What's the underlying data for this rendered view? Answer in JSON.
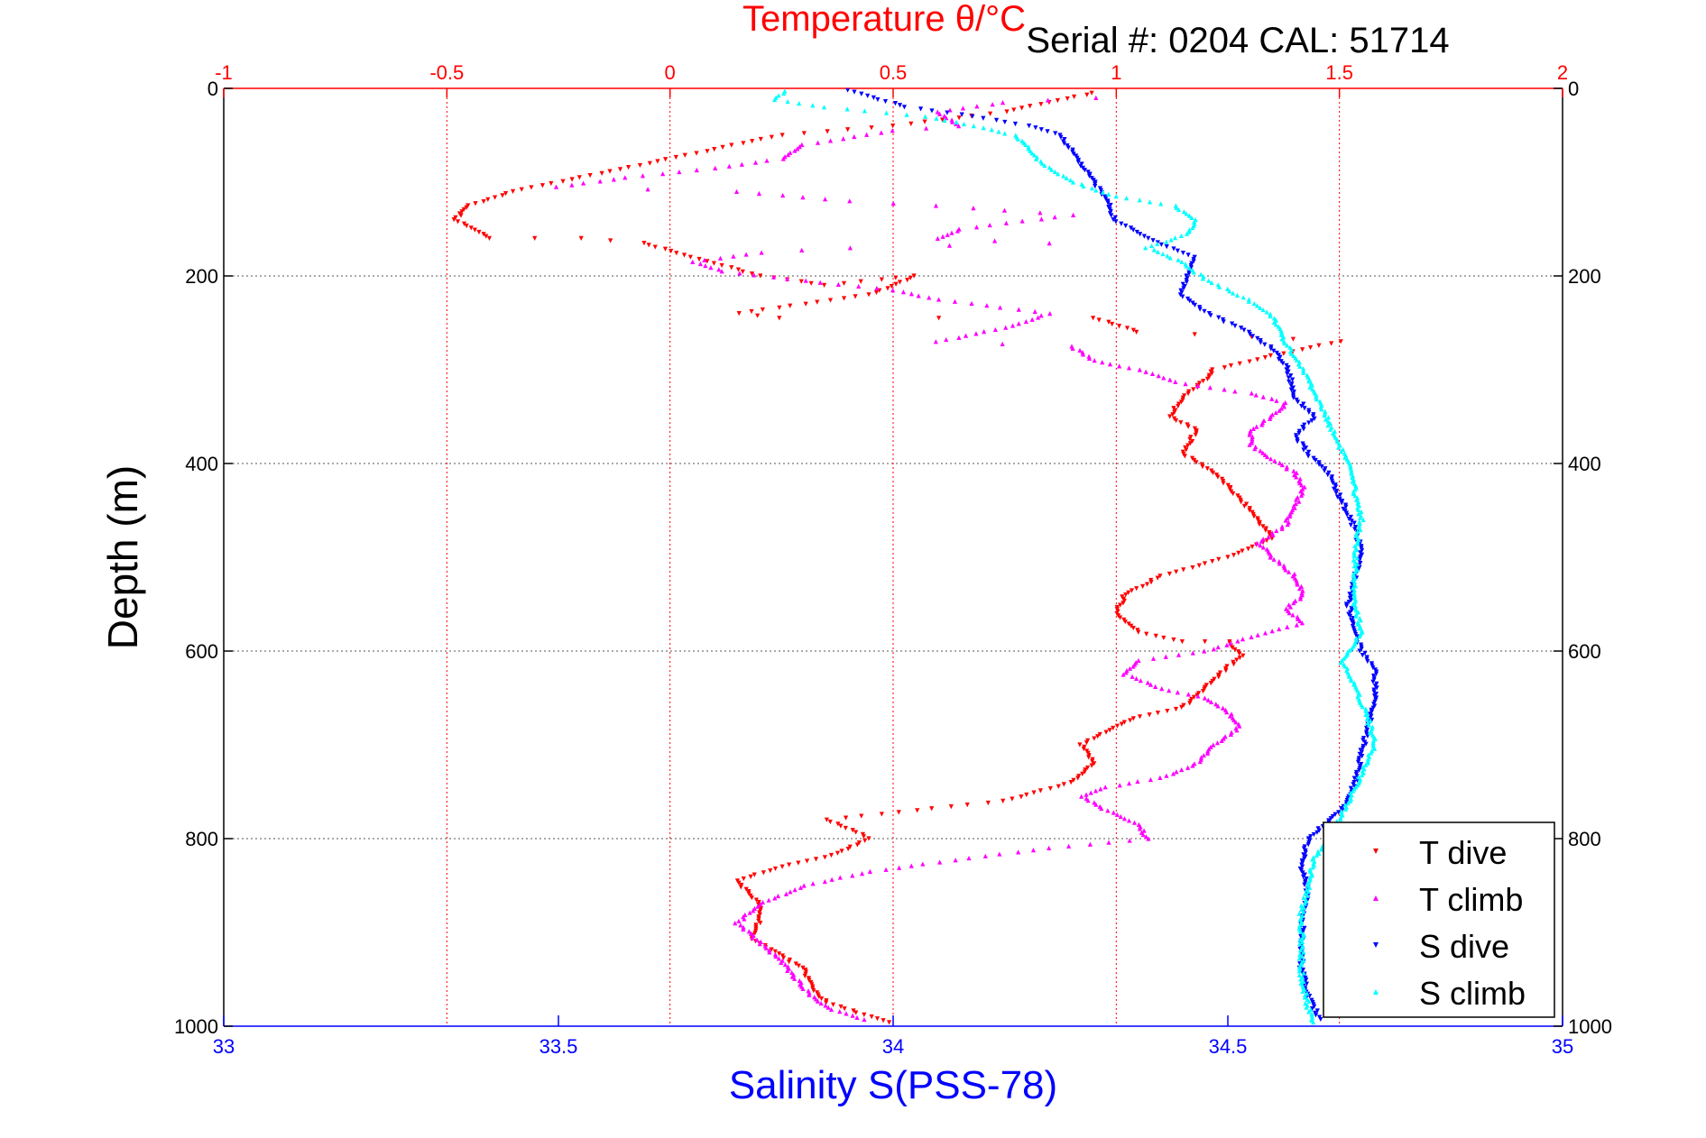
{
  "chart_data": {
    "type": "scatter",
    "title": "Temperature θ/°C",
    "subtitle": "Serial #: 0204   CAL: 51714",
    "ylabel": "Depth (m)",
    "xlabel_bottom": "Salinity S(PSS-78)",
    "xlabel_top": "Temperature θ/°C",
    "y_range": [
      0,
      1000
    ],
    "y_reversed": true,
    "y_ticks": [
      "0",
      "200",
      "400",
      "600",
      "800",
      "1000"
    ],
    "x_bottom_range": [
      33,
      35
    ],
    "x_bottom_ticks": [
      "33",
      "33.5",
      "34",
      "34.5",
      "35"
    ],
    "x_top_range": [
      -1,
      2
    ],
    "x_top_ticks": [
      "-1",
      "-0.5",
      "0",
      "0.5",
      "1",
      "1.5",
      "2"
    ],
    "grid": true,
    "legend_position": "bottom-right",
    "colors": {
      "t_dive": "#ff0000",
      "t_climb": "#ff00ff",
      "s_dive": "#0000ff",
      "s_climb": "#00ffff",
      "top_axis": "#ff0000",
      "bottom_axis": "#0000ff"
    },
    "series": [
      {
        "name": "T dive",
        "axis": "top",
        "color": "#ff0000",
        "marker": "triangle-down",
        "points": [
          [
            0.95,
            5
          ],
          [
            0.85,
            15
          ],
          [
            0.75,
            25
          ],
          [
            0.5,
            40
          ],
          [
            0.25,
            50
          ],
          [
            0.1,
            65
          ],
          [
            -0.05,
            80
          ],
          [
            -0.2,
            95
          ],
          [
            -0.35,
            110
          ],
          [
            -0.45,
            125
          ],
          [
            -0.48,
            140
          ],
          [
            -0.4,
            160
          ],
          [
            -0.2,
            160
          ],
          [
            -0.06,
            165
          ],
          [
            0.05,
            180
          ],
          [
            0.2,
            200
          ],
          [
            0.35,
            210
          ],
          [
            0.55,
            200
          ],
          [
            0.45,
            220
          ],
          [
            0.3,
            230
          ],
          [
            0.15,
            240
          ],
          [
            0.25,
            245
          ],
          [
            0.95,
            245
          ],
          [
            1.05,
            260
          ],
          [
            1.3,
            265
          ],
          [
            1.5,
            270
          ],
          [
            1.35,
            285
          ],
          [
            1.22,
            300
          ],
          [
            1.2,
            310
          ],
          [
            1.15,
            330
          ],
          [
            1.12,
            350
          ],
          [
            1.18,
            365
          ],
          [
            1.15,
            390
          ],
          [
            1.22,
            410
          ],
          [
            1.3,
            450
          ],
          [
            1.35,
            480
          ],
          [
            1.25,
            500
          ],
          [
            1.1,
            520
          ],
          [
            1.02,
            540
          ],
          [
            1.0,
            560
          ],
          [
            1.05,
            580
          ],
          [
            1.15,
            590
          ],
          [
            1.25,
            590
          ],
          [
            1.28,
            605
          ],
          [
            1.22,
            630
          ],
          [
            1.15,
            660
          ],
          [
            1.05,
            670
          ],
          [
            1.0,
            680
          ],
          [
            0.92,
            700
          ],
          [
            0.95,
            720
          ],
          [
            0.9,
            740
          ],
          [
            0.75,
            760
          ],
          [
            0.55,
            770
          ],
          [
            0.35,
            780
          ],
          [
            0.45,
            800
          ],
          [
            0.35,
            820
          ],
          [
            0.25,
            830
          ],
          [
            0.15,
            845
          ],
          [
            0.2,
            870
          ],
          [
            0.2,
            890
          ],
          [
            0.18,
            905
          ],
          [
            0.25,
            925
          ],
          [
            0.3,
            940
          ],
          [
            0.32,
            960
          ],
          [
            0.35,
            975
          ],
          [
            0.45,
            990
          ],
          [
            0.5,
            998
          ]
        ]
      },
      {
        "name": "T climb",
        "axis": "top",
        "color": "#ff00ff",
        "marker": "triangle-up",
        "points": [
          [
            0.95,
            10
          ],
          [
            0.75,
            15
          ],
          [
            0.6,
            25
          ],
          [
            0.65,
            40
          ],
          [
            0.5,
            45
          ],
          [
            0.3,
            60
          ],
          [
            0.25,
            75
          ],
          [
            0.1,
            85
          ],
          [
            -0.1,
            95
          ],
          [
            -0.25,
            105
          ],
          [
            0.15,
            110
          ],
          [
            0.4,
            120
          ],
          [
            0.6,
            125
          ],
          [
            0.75,
            130
          ],
          [
            0.9,
            135
          ],
          [
            0.65,
            150
          ],
          [
            0.6,
            160
          ],
          [
            0.85,
            165
          ],
          [
            0.4,
            170
          ],
          [
            0.2,
            175
          ],
          [
            0.05,
            185
          ],
          [
            0.12,
            195
          ],
          [
            0.3,
            205
          ],
          [
            0.5,
            215
          ],
          [
            0.6,
            225
          ],
          [
            0.85,
            240
          ],
          [
            0.75,
            255
          ],
          [
            0.6,
            270
          ],
          [
            0.9,
            275
          ],
          [
            0.95,
            290
          ],
          [
            1.05,
            300
          ],
          [
            1.15,
            315
          ],
          [
            1.3,
            325
          ],
          [
            1.38,
            335
          ],
          [
            1.35,
            350
          ],
          [
            1.3,
            365
          ],
          [
            1.3,
            380
          ],
          [
            1.35,
            395
          ],
          [
            1.4,
            410
          ],
          [
            1.42,
            425
          ],
          [
            1.4,
            445
          ],
          [
            1.38,
            465
          ],
          [
            1.32,
            485
          ],
          [
            1.35,
            500
          ],
          [
            1.4,
            520
          ],
          [
            1.42,
            540
          ],
          [
            1.38,
            555
          ],
          [
            1.42,
            570
          ],
          [
            1.3,
            585
          ],
          [
            1.2,
            600
          ],
          [
            1.05,
            610
          ],
          [
            1.02,
            625
          ],
          [
            1.1,
            640
          ],
          [
            1.2,
            650
          ],
          [
            1.25,
            665
          ],
          [
            1.28,
            680
          ],
          [
            1.22,
            700
          ],
          [
            1.18,
            720
          ],
          [
            1.1,
            735
          ],
          [
            0.98,
            745
          ],
          [
            0.92,
            755
          ],
          [
            0.98,
            770
          ],
          [
            1.05,
            785
          ],
          [
            1.07,
            800
          ],
          [
            0.85,
            810
          ],
          [
            0.6,
            825
          ],
          [
            0.45,
            835
          ],
          [
            0.3,
            850
          ],
          [
            0.2,
            870
          ],
          [
            0.15,
            890
          ],
          [
            0.2,
            910
          ],
          [
            0.25,
            930
          ],
          [
            0.3,
            960
          ],
          [
            0.35,
            980
          ],
          [
            0.45,
            995
          ]
        ]
      },
      {
        "name": "S dive",
        "axis": "bottom",
        "color": "#0000ff",
        "marker": "triangle-down",
        "points": [
          [
            33.93,
            2
          ],
          [
            33.97,
            10
          ],
          [
            34.02,
            20
          ],
          [
            34.12,
            30
          ],
          [
            34.2,
            40
          ],
          [
            34.25,
            50
          ],
          [
            34.27,
            70
          ],
          [
            34.3,
            100
          ],
          [
            34.32,
            120
          ],
          [
            34.33,
            140
          ],
          [
            34.38,
            160
          ],
          [
            34.45,
            180
          ],
          [
            34.44,
            200
          ],
          [
            34.43,
            220
          ],
          [
            34.47,
            240
          ],
          [
            34.53,
            260
          ],
          [
            34.57,
            280
          ],
          [
            34.59,
            300
          ],
          [
            34.6,
            330
          ],
          [
            34.63,
            350
          ],
          [
            34.6,
            370
          ],
          [
            34.62,
            390
          ],
          [
            34.65,
            410
          ],
          [
            34.67,
            440
          ],
          [
            34.69,
            470
          ],
          [
            34.7,
            495
          ],
          [
            34.69,
            520
          ],
          [
            34.68,
            550
          ],
          [
            34.69,
            580
          ],
          [
            34.7,
            600
          ],
          [
            34.72,
            620
          ],
          [
            34.72,
            650
          ],
          [
            34.71,
            680
          ],
          [
            34.7,
            710
          ],
          [
            34.69,
            740
          ],
          [
            34.67,
            770
          ],
          [
            34.62,
            800
          ],
          [
            34.61,
            830
          ],
          [
            34.62,
            860
          ],
          [
            34.61,
            900
          ],
          [
            34.61,
            940
          ],
          [
            34.62,
            970
          ],
          [
            34.64,
            995
          ]
        ]
      },
      {
        "name": "S climb",
        "axis": "bottom",
        "color": "#00ffff",
        "marker": "triangle-up",
        "points": [
          [
            33.84,
            3
          ],
          [
            33.82,
            12
          ],
          [
            33.9,
            20
          ],
          [
            34.05,
            30
          ],
          [
            34.12,
            40
          ],
          [
            34.18,
            50
          ],
          [
            34.2,
            60
          ],
          [
            34.22,
            80
          ],
          [
            34.27,
            100
          ],
          [
            34.33,
            115
          ],
          [
            34.42,
            125
          ],
          [
            34.45,
            140
          ],
          [
            34.44,
            155
          ],
          [
            34.38,
            170
          ],
          [
            34.43,
            185
          ],
          [
            34.47,
            205
          ],
          [
            34.53,
            225
          ],
          [
            34.57,
            245
          ],
          [
            34.58,
            265
          ],
          [
            34.6,
            285
          ],
          [
            34.62,
            310
          ],
          [
            34.64,
            340
          ],
          [
            34.66,
            370
          ],
          [
            34.68,
            400
          ],
          [
            34.69,
            430
          ],
          [
            34.7,
            460
          ],
          [
            34.69,
            490
          ],
          [
            34.69,
            520
          ],
          [
            34.69,
            550
          ],
          [
            34.7,
            580
          ],
          [
            34.67,
            610
          ],
          [
            34.69,
            640
          ],
          [
            34.71,
            670
          ],
          [
            34.72,
            700
          ],
          [
            34.7,
            730
          ],
          [
            34.68,
            760
          ],
          [
            34.66,
            790
          ],
          [
            34.63,
            820
          ],
          [
            34.62,
            850
          ],
          [
            34.61,
            880
          ],
          [
            34.61,
            910
          ],
          [
            34.61,
            950
          ],
          [
            34.62,
            980
          ],
          [
            34.63,
            998
          ]
        ]
      }
    ]
  }
}
